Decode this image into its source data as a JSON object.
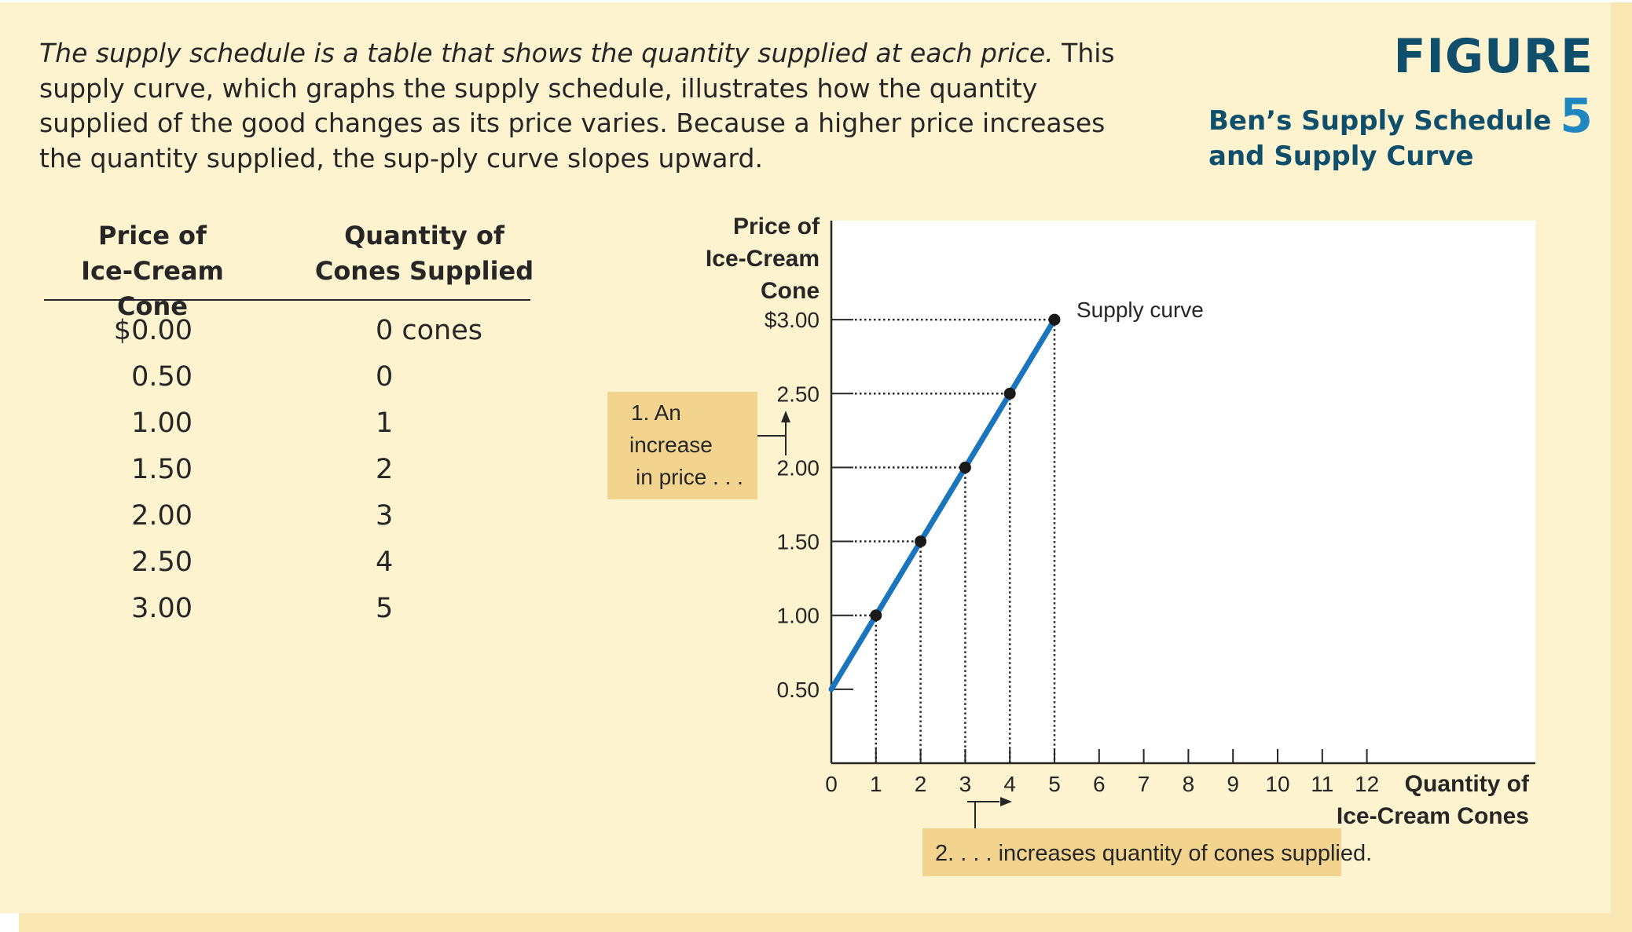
{
  "caption": {
    "lead_italic": "The supply schedule is a table that shows the quantity supplied at each price.",
    "rest": " This supply curve, which graphs the supply schedule, illustrates how the quantity supplied of the good changes as its price varies. Because a higher price increases the quantity supplied, the sup-ply curve slopes upward."
  },
  "figure": {
    "label": "FIGURE",
    "number": "5",
    "title": "Ben’s Supply Schedule and Supply Curve"
  },
  "schedule": {
    "headers": {
      "price": [
        "Price of",
        "Ice-Cream Cone"
      ],
      "quantity": [
        "Quantity of",
        "Cones Supplied"
      ]
    },
    "rows": [
      {
        "price": "$0.00",
        "quantity": "0 cones"
      },
      {
        "price": "0.50",
        "quantity": "0"
      },
      {
        "price": "1.00",
        "quantity": "1"
      },
      {
        "price": "1.50",
        "quantity": "2"
      },
      {
        "price": "2.00",
        "quantity": "3"
      },
      {
        "price": "2.50",
        "quantity": "4"
      },
      {
        "price": "3.00",
        "quantity": "5"
      }
    ]
  },
  "chart_data": {
    "type": "line",
    "ylabel_lines": [
      "Price of",
      "Ice-Cream",
      "Cone"
    ],
    "xlabel_lines": [
      "Quantity of",
      "Ice-Cream Cones"
    ],
    "y_ticks": [
      {
        "value": 3.0,
        "label": "$3.00"
      },
      {
        "value": 2.5,
        "label": "2.50"
      },
      {
        "value": 2.0,
        "label": "2.00"
      },
      {
        "value": 1.5,
        "label": "1.50"
      },
      {
        "value": 1.0,
        "label": "1.00"
      },
      {
        "value": 0.5,
        "label": "0.50"
      }
    ],
    "x_ticks": [
      0,
      1,
      2,
      3,
      4,
      5,
      6,
      7,
      8,
      9,
      10,
      11,
      12
    ],
    "xlim": [
      0,
      16
    ],
    "ylim": [
      0,
      3.75
    ],
    "series": [
      {
        "name": "Supply curve",
        "color": "#1a75bc",
        "x": [
          0,
          1,
          2,
          3,
          4,
          5
        ],
        "y": [
          0.5,
          1.0,
          1.5,
          2.0,
          2.5,
          3.0
        ]
      }
    ],
    "markers": [
      {
        "x": 1,
        "y": 1.0
      },
      {
        "x": 2,
        "y": 1.5
      },
      {
        "x": 3,
        "y": 2.0
      },
      {
        "x": 4,
        "y": 2.5
      },
      {
        "x": 5,
        "y": 3.0
      }
    ],
    "annotations": {
      "price_increase": [
        "1. An",
        "increase",
        "in price . . ."
      ],
      "quantity_increase": "2. . . . increases quantity of cones supplied."
    }
  },
  "colors": {
    "panel": "#fdf3cf",
    "callout": "#f2d48e",
    "curve": "#1a75bc",
    "heading": "#0f4f6b",
    "figure_number": "#1f86bf"
  }
}
